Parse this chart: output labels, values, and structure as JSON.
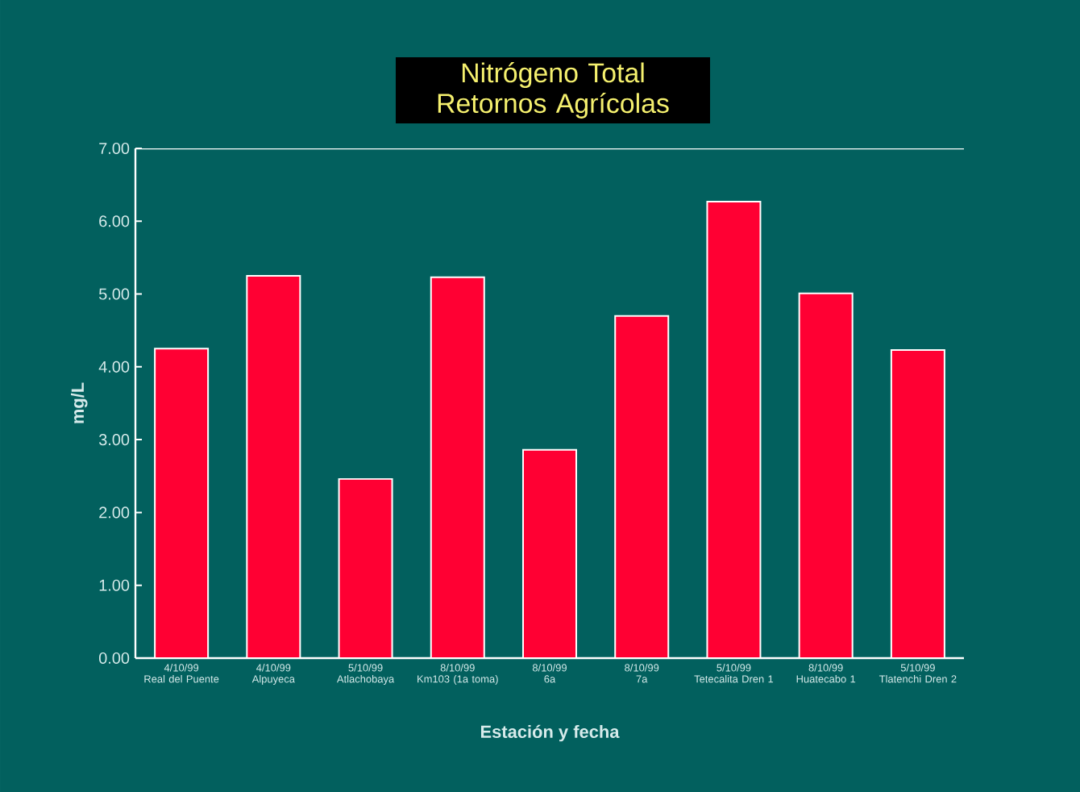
{
  "chart_data": {
    "type": "bar",
    "title": "Nitrógeno Total\nRetornos Agrícolas",
    "xlabel": "Estación y fecha",
    "ylabel": "mg/L",
    "categories": [
      "4/10/99\nReal del Puente",
      "4/10/99\nAlpuyeca",
      "5/10/99\nAtlachobaya",
      "8/10/99\nKm103 (1a toma)",
      "8/10/99\n6a",
      "8/10/99\n7a",
      "5/10/99\nTetecalita Dren 1",
      "8/10/99\nHuatecabo  1",
      "5/10/99\nTlatenchi Dren 2"
    ],
    "values": [
      4.25,
      5.25,
      2.46,
      5.23,
      2.86,
      4.7,
      6.27,
      5.01,
      4.23
    ],
    "color": "#ff0033",
    "ylim": [
      0,
      7
    ],
    "yticks": [
      {
        "value": 0,
        "label": "0.00"
      },
      {
        "value": 1,
        "label": "1.00"
      },
      {
        "value": 2,
        "label": "2.00"
      },
      {
        "value": 3,
        "label": "3.00"
      },
      {
        "value": 4,
        "label": "4.00"
      },
      {
        "value": 5,
        "label": "5.00"
      },
      {
        "value": 6,
        "label": "6.00"
      },
      {
        "value": 7,
        "label": "7.00"
      }
    ],
    "grid": false
  }
}
